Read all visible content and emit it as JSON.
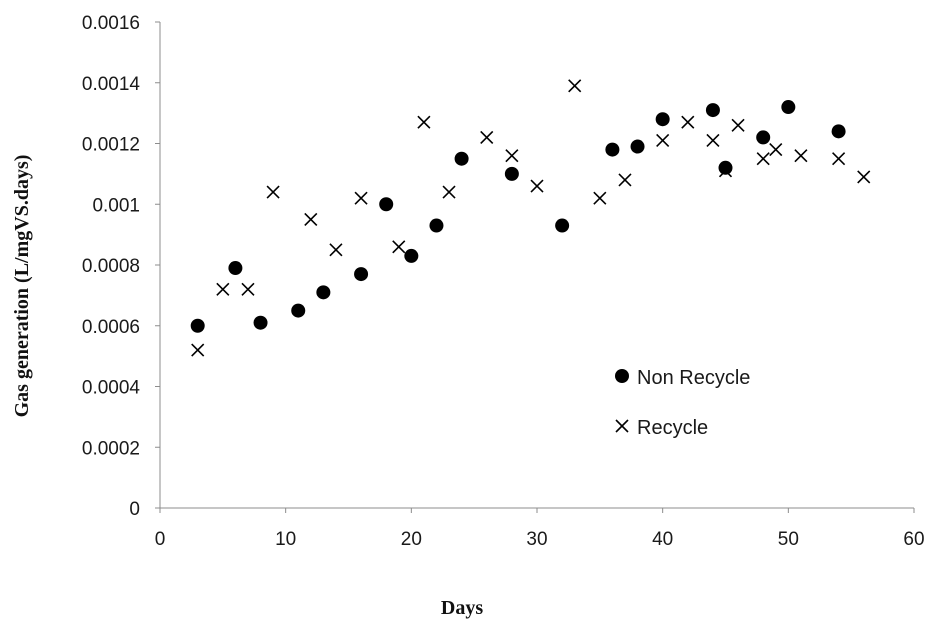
{
  "chart_data": {
    "type": "scatter",
    "xlabel": "Days",
    "ylabel": "Gas generation (L/mgVS.days)",
    "xlim": [
      0,
      60
    ],
    "ylim": [
      0,
      0.0016
    ],
    "x_ticks": [
      "0",
      "10",
      "20",
      "30",
      "40",
      "50",
      "60"
    ],
    "y_ticks": [
      "0",
      "0.0002",
      "0.0004",
      "0.0006",
      "0.0008",
      "0.001",
      "0.0012",
      "0.0014",
      "0.0016"
    ],
    "grid": false,
    "legend_position": "right-center",
    "series": [
      {
        "name": "Non Recycle",
        "marker": "circle",
        "color": "#000000",
        "points": [
          [
            3,
            0.0006
          ],
          [
            6,
            0.00079
          ],
          [
            8,
            0.00061
          ],
          [
            11,
            0.00065
          ],
          [
            13,
            0.00071
          ],
          [
            16,
            0.00077
          ],
          [
            18,
            0.001
          ],
          [
            20,
            0.00083
          ],
          [
            22,
            0.00093
          ],
          [
            24,
            0.00115
          ],
          [
            28,
            0.0011
          ],
          [
            32,
            0.00093
          ],
          [
            36,
            0.00118
          ],
          [
            38,
            0.00119
          ],
          [
            40,
            0.00128
          ],
          [
            44,
            0.00131
          ],
          [
            45,
            0.00112
          ],
          [
            48,
            0.00122
          ],
          [
            50,
            0.00132
          ],
          [
            54,
            0.00124
          ]
        ]
      },
      {
        "name": "Recycle",
        "marker": "x",
        "color": "#000000",
        "points": [
          [
            3,
            0.00052
          ],
          [
            5,
            0.00072
          ],
          [
            7,
            0.00072
          ],
          [
            9,
            0.00104
          ],
          [
            12,
            0.00095
          ],
          [
            14,
            0.00085
          ],
          [
            16,
            0.00102
          ],
          [
            19,
            0.00086
          ],
          [
            21,
            0.00127
          ],
          [
            23,
            0.00104
          ],
          [
            26,
            0.00122
          ],
          [
            28,
            0.00116
          ],
          [
            30,
            0.00106
          ],
          [
            33,
            0.00139
          ],
          [
            35,
            0.00102
          ],
          [
            37,
            0.00108
          ],
          [
            40,
            0.00121
          ],
          [
            42,
            0.00127
          ],
          [
            44,
            0.00121
          ],
          [
            45,
            0.00111
          ],
          [
            46,
            0.00126
          ],
          [
            48,
            0.00115
          ],
          [
            49,
            0.00118
          ],
          [
            51,
            0.00116
          ],
          [
            54,
            0.00115
          ],
          [
            56,
            0.00109
          ]
        ]
      }
    ]
  }
}
